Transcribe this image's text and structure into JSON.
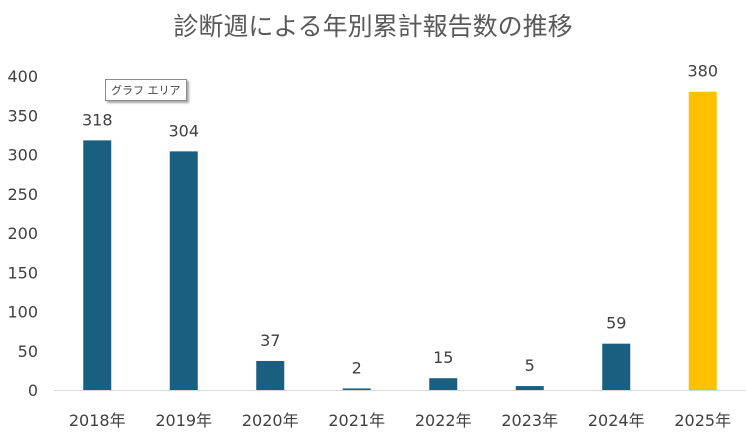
{
  "chart_data": {
    "type": "bar",
    "title": "診断週による年別累計報告数の推移",
    "categories": [
      "2018年",
      "2019年",
      "2020年",
      "2021年",
      "2022年",
      "2023年",
      "2024年",
      "2025年"
    ],
    "values": [
      318,
      304,
      37,
      2,
      15,
      5,
      59,
      380
    ],
    "ylim": [
      0,
      400
    ],
    "yticks": [
      0,
      50,
      100,
      150,
      200,
      250,
      300,
      350,
      400
    ],
    "xlabel": "",
    "ylabel": "",
    "grid": false,
    "colors": {
      "default": "#1a5e80",
      "highlight": "#ffc000",
      "highlight_index": 7,
      "axis": "#d9d9d9"
    }
  },
  "tooltip": {
    "text": "グラフ エリア"
  }
}
